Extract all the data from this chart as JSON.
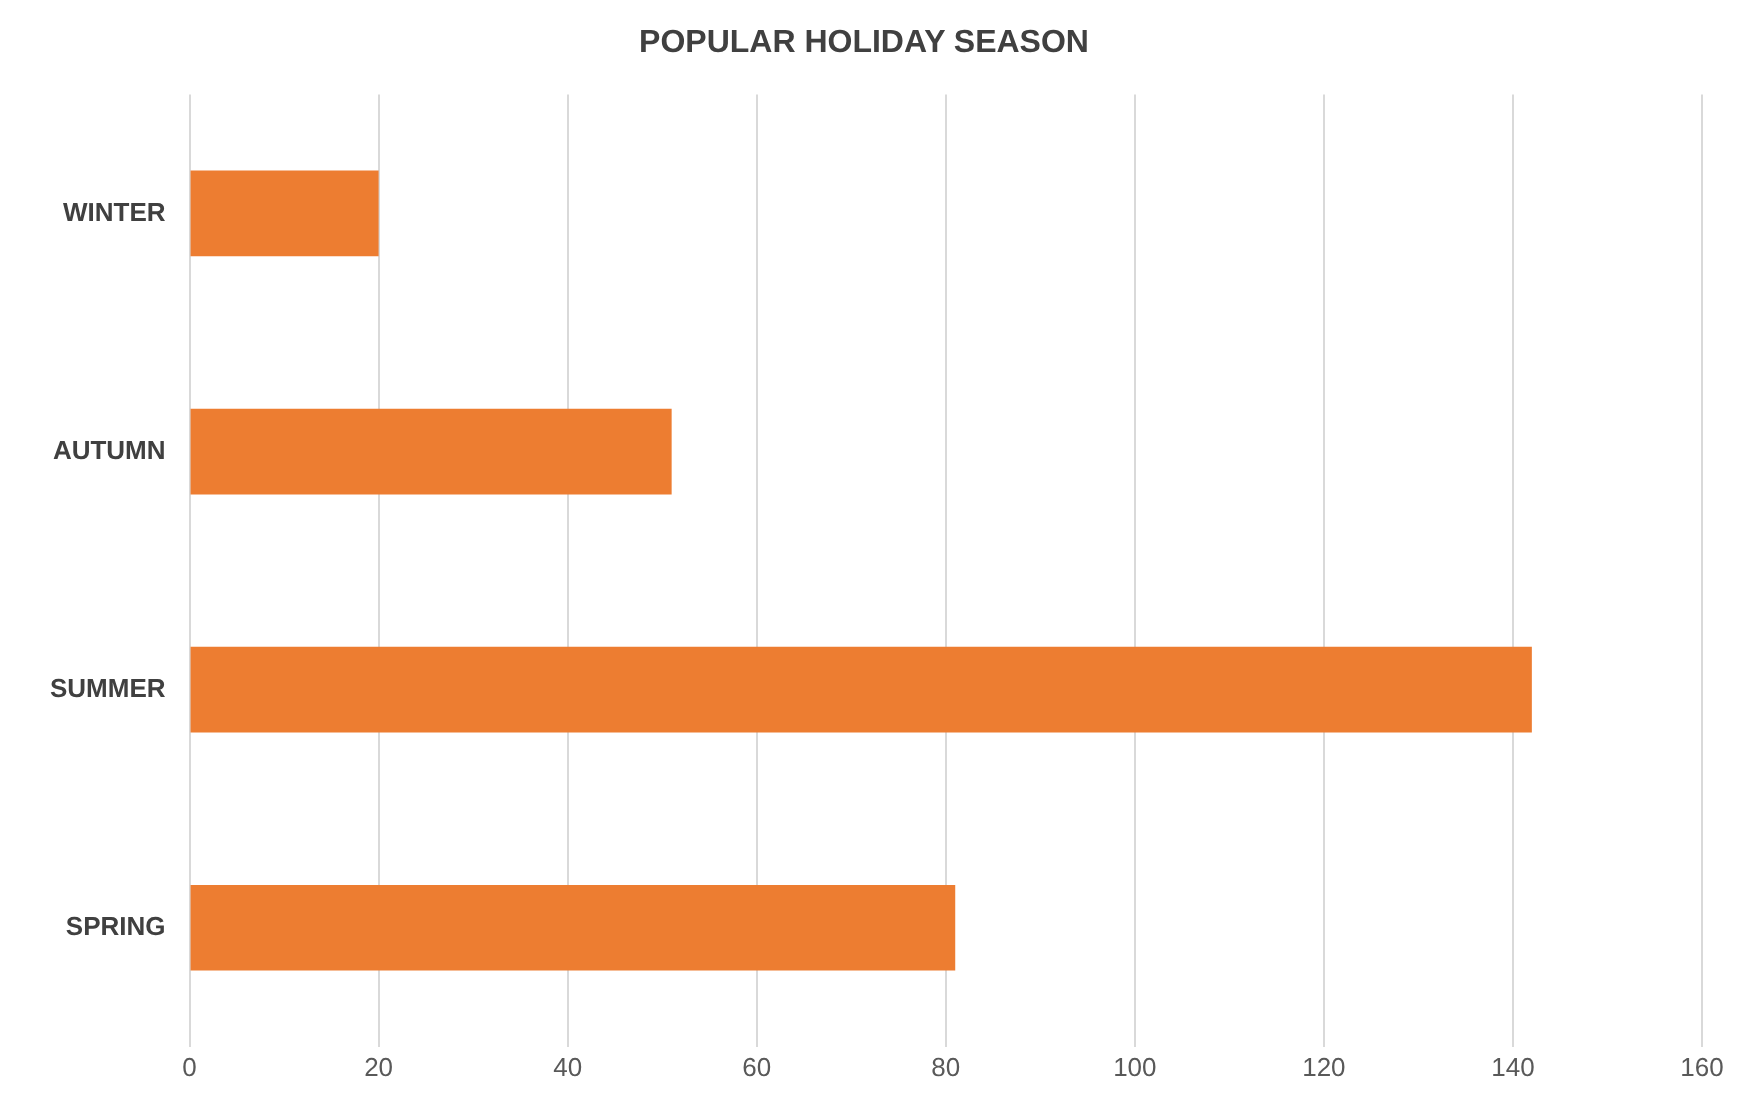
{
  "chart_data": {
    "type": "bar",
    "orientation": "horizontal",
    "title": "POPULAR HOLIDAY SEASON",
    "categories": [
      "WINTER",
      "AUTUMN",
      "SUMMER",
      "SPRING"
    ],
    "values": [
      20,
      51,
      142,
      81
    ],
    "color": "#ed7d31",
    "xlim": [
      0,
      160
    ],
    "xticks": [
      0,
      20,
      40,
      60,
      80,
      100,
      120,
      140,
      160
    ],
    "grid": "x",
    "legend": false
  }
}
